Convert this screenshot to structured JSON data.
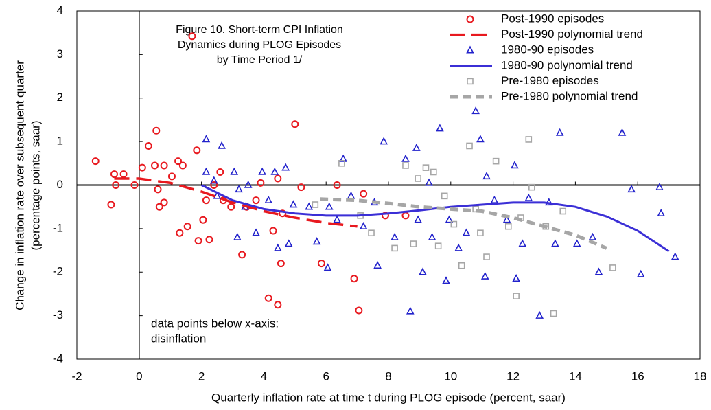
{
  "chart_data": {
    "type": "scatter",
    "title": [
      "Figure 10. Short-term CPI Inflation",
      "Dynamics during PLOG Episodes",
      "by Time Period 1/"
    ],
    "annotation": [
      "data points below  x-axis:",
      "disinflation"
    ],
    "x_label": "Quarterly inflation rate at time t during PLOG episode (percent, saar)",
    "y_label": [
      "Change in inflation rate over subsequent quarter",
      "(percentage points, saar)"
    ],
    "xlim": [
      -2,
      18
    ],
    "xticks": [
      -2,
      0,
      2,
      4,
      6,
      8,
      10,
      12,
      14,
      16,
      18
    ],
    "ylim": [
      -4,
      4
    ],
    "yticks": [
      -4,
      -3,
      -2,
      -1,
      0,
      1,
      2,
      3,
      4
    ],
    "legend": "upper right",
    "series": [
      {
        "name": "Post-1990 episodes",
        "kind": "points",
        "marker": "circle",
        "color": "#e8191f",
        "x": [
          -1.4,
          -0.8,
          -0.9,
          -0.75,
          -0.5,
          -0.15,
          0.1,
          0.3,
          0.55,
          0.5,
          0.8,
          0.6,
          0.65,
          0.8,
          1.05,
          1.25,
          1.4,
          1.3,
          1.55,
          1.7,
          1.85,
          1.9,
          2.05,
          2.15,
          2.25,
          2.4,
          2.6,
          2.7,
          2.95,
          3.3,
          3.45,
          3.75,
          3.9,
          4.15,
          4.3,
          4.45,
          4.45,
          4.55,
          4.6,
          5.0,
          5.2,
          5.85,
          6.35,
          6.9,
          7.05,
          7.2,
          7.9,
          8.55
        ],
        "y": [
          0.55,
          0.25,
          -0.45,
          0,
          0.25,
          0,
          0.4,
          0.9,
          1.25,
          0.45,
          0.45,
          -0.1,
          -0.5,
          -0.4,
          0.2,
          0.55,
          0.45,
          -1.1,
          -0.95,
          3.42,
          0.8,
          -1.28,
          -0.8,
          -0.35,
          -1.25,
          0,
          0.3,
          -0.35,
          -0.5,
          -1.6,
          -0.5,
          -0.35,
          0.05,
          -2.6,
          -1.05,
          -2.75,
          0.15,
          -1.8,
          -0.65,
          1.4,
          -0.05,
          -1.8,
          0,
          -2.15,
          -2.88,
          -0.2,
          -0.7,
          -0.7
        ]
      },
      {
        "name": "Post-1990 polynomial trend",
        "kind": "line",
        "linestyle": "longdash",
        "color": "#e8191f",
        "x": [
          -0.8,
          0,
          1,
          2,
          3,
          4,
          5,
          6,
          7
        ],
        "y": [
          0.15,
          0.15,
          0.05,
          -0.15,
          -0.4,
          -0.6,
          -0.75,
          -0.87,
          -0.95
        ]
      },
      {
        "name": "1980-90 episodes",
        "kind": "points",
        "marker": "triangle",
        "color": "#2222cc",
        "x": [
          2.15,
          2.15,
          2.65,
          2.4,
          2.5,
          3.05,
          3.2,
          3.15,
          3.4,
          3.5,
          3.75,
          3.95,
          4.15,
          4.35,
          4.45,
          4.7,
          4.8,
          4.95,
          5.45,
          6.05,
          5.7,
          6.1,
          6.55,
          6.35,
          6.8,
          7.2,
          7.55,
          7.65,
          7.85,
          8.2,
          8.55,
          8.7,
          8.9,
          8.95,
          9.1,
          9.3,
          9.4,
          9.65,
          9.85,
          9.95,
          10.25,
          10.5,
          10.8,
          10.95,
          11.15,
          11.1,
          11.4,
          11.8,
          12.05,
          12.1,
          12.3,
          12.5,
          12.85,
          13.15,
          13.35,
          13.5,
          14.05,
          14.55,
          14.75,
          15.5,
          15.8,
          16.1,
          16.7,
          16.75,
          17.2
        ],
        "y": [
          0.3,
          1.05,
          0.9,
          0.1,
          -0.25,
          0.3,
          -0.1,
          -1.2,
          -0.5,
          0,
          -1.1,
          0.3,
          -0.35,
          0.3,
          -1.45,
          0.4,
          -1.35,
          -0.45,
          -0.5,
          -1.9,
          -1.3,
          -0.5,
          0.6,
          -0.8,
          -0.25,
          -0.95,
          -0.4,
          -1.85,
          1.0,
          -1.2,
          0.6,
          -2.9,
          0.85,
          -0.8,
          -2.0,
          0.05,
          -1.2,
          1.3,
          -2.2,
          -0.8,
          -1.45,
          -1.1,
          1.7,
          1.05,
          0.2,
          -2.1,
          -0.35,
          -0.8,
          0.45,
          -2.15,
          -1.35,
          -0.3,
          -3.0,
          -0.4,
          -1.35,
          1.2,
          -1.35,
          -1.2,
          -2.0,
          1.2,
          -0.1,
          -2.05,
          -0.05,
          -0.65,
          -1.65
        ]
      },
      {
        "name": "1980-90 polynomial trend",
        "kind": "line",
        "linestyle": "solid",
        "color": "#3b2fd6",
        "x": [
          2,
          3,
          4,
          5,
          6,
          7,
          8,
          9,
          10,
          11,
          12,
          13,
          14,
          15,
          16,
          17
        ],
        "y": [
          0,
          -0.35,
          -0.55,
          -0.65,
          -0.7,
          -0.7,
          -0.65,
          -0.58,
          -0.5,
          -0.45,
          -0.4,
          -0.4,
          -0.5,
          -0.72,
          -1.05,
          -1.52
        ]
      },
      {
        "name": "Pre-1980 episodes",
        "kind": "points",
        "marker": "square",
        "color": "#a6a6a6",
        "x": [
          5.65,
          6.5,
          7.1,
          7.45,
          8.2,
          8.55,
          8.8,
          8.95,
          9.2,
          9.45,
          9.6,
          9.8,
          10.1,
          10.35,
          10.6,
          10.8,
          10.95,
          11.15,
          11.45,
          11.85,
          12.1,
          12.25,
          12.5,
          12.6,
          13.05,
          13.3,
          13.6,
          15.2
        ],
        "y": [
          -0.45,
          0.5,
          -0.7,
          -1.1,
          -1.45,
          0.45,
          -1.35,
          0.15,
          0.4,
          0.3,
          -1.4,
          -0.25,
          -0.9,
          -1.85,
          0.9,
          -0.55,
          -1.1,
          -1.65,
          0.55,
          -0.95,
          -2.55,
          -0.75,
          1.05,
          -0.05,
          -0.95,
          -2.95,
          -0.6,
          -1.9
        ]
      },
      {
        "name": "Pre-1980 polynomial trend",
        "kind": "line",
        "linestyle": "dashed",
        "color": "#a6a6a6",
        "x": [
          5.8,
          7,
          8,
          9,
          10,
          11,
          12,
          13,
          14,
          15
        ],
        "y": [
          -0.32,
          -0.35,
          -0.42,
          -0.5,
          -0.55,
          -0.6,
          -0.75,
          -0.95,
          -1.15,
          -1.45
        ]
      }
    ]
  }
}
